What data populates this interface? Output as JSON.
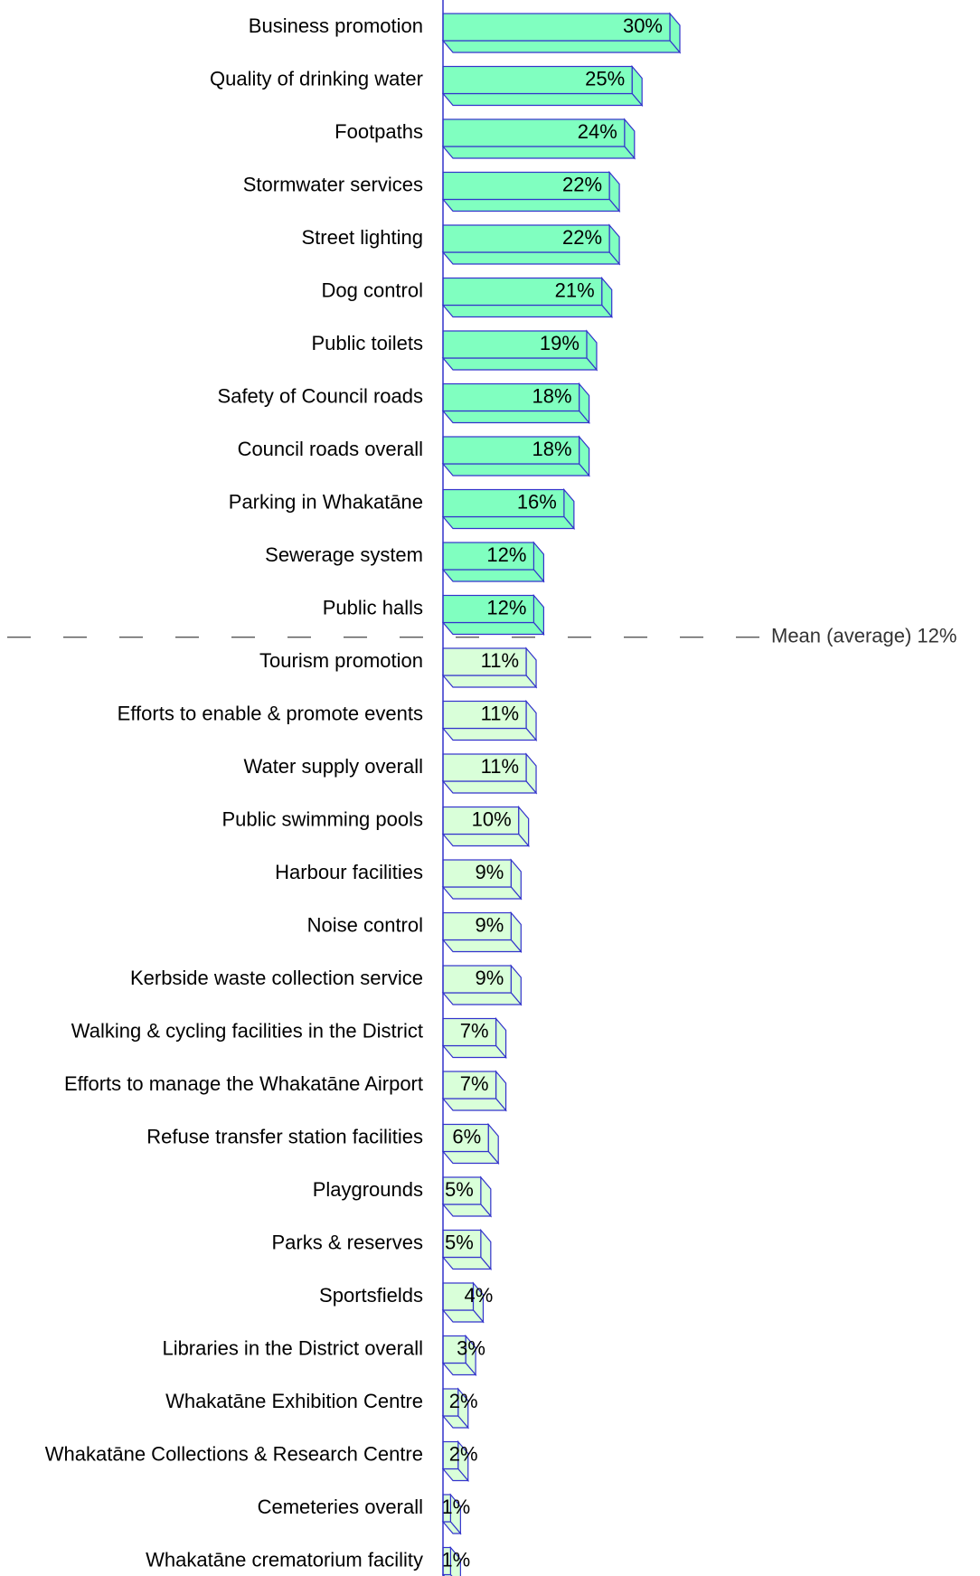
{
  "chart_data": {
    "type": "bar",
    "orientation": "horizontal",
    "categories": [
      "Business promotion",
      "Quality of drinking water",
      "Footpaths",
      "Stormwater services",
      "Street lighting",
      "Dog control",
      "Public toilets",
      "Safety of Council roads",
      "Council roads overall",
      "Parking in Whakatāne",
      "Sewerage system",
      "Public halls",
      "Tourism promotion",
      "Efforts to enable & promote events",
      "Water supply overall",
      "Public swimming pools",
      "Harbour facilities",
      "Noise control",
      "Kerbside waste collection service",
      "Walking & cycling facilities in the District",
      "Efforts to manage the Whakatāne Airport",
      "Refuse transfer station facilities",
      "Playgrounds",
      "Parks & reserves",
      "Sportsfields",
      "Libraries in the District overall",
      "Whakatāne Exhibition Centre",
      "Whakatāne Collections & Research Centre",
      "Cemeteries overall",
      "Whakatāne crematorium facility"
    ],
    "values": [
      30,
      25,
      24,
      22,
      22,
      21,
      19,
      18,
      18,
      16,
      12,
      12,
      11,
      11,
      11,
      10,
      9,
      9,
      9,
      7,
      7,
      6,
      5,
      5,
      4,
      3,
      2,
      2,
      1,
      1
    ],
    "value_labels": [
      "30%",
      "25%",
      "24%",
      "22%",
      "22%",
      "21%",
      "19%",
      "18%",
      "18%",
      "16%",
      "12%",
      "12%",
      "11%",
      "11%",
      "11%",
      "10%",
      "9%",
      "9%",
      "9%",
      "7%",
      "7%",
      "6%",
      "5%",
      "5%",
      "4%",
      "3%",
      "2%",
      "2%",
      "1%",
      "1%"
    ],
    "xlim": [
      0,
      30
    ],
    "color_above_mean": "#80ffc0",
    "color_below_mean": "#d9ffd9",
    "outline_color": "#3333cc",
    "mean": 12,
    "mean_label": "Mean (average) 12%"
  }
}
